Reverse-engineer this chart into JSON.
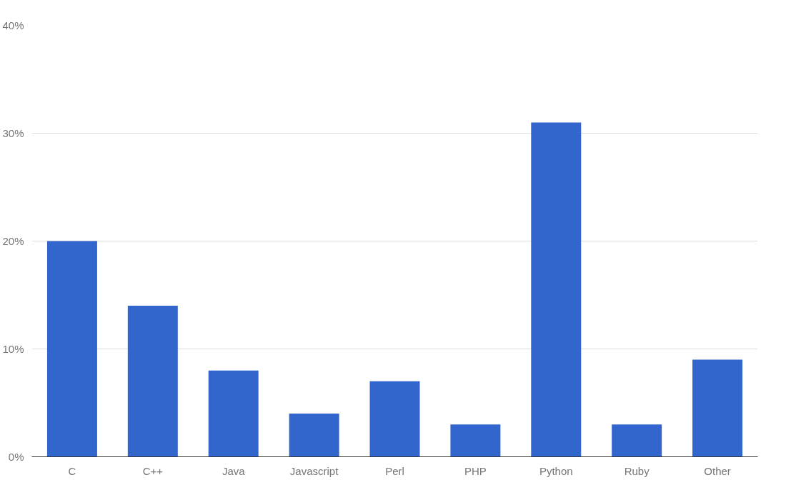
{
  "chart_data": {
    "type": "bar",
    "categories": [
      "C",
      "C++",
      "Java",
      "Javascript",
      "Perl",
      "PHP",
      "Python",
      "Ruby",
      "Other"
    ],
    "values": [
      20,
      14,
      8,
      4,
      7,
      3,
      31,
      3,
      9
    ],
    "color": "#3366cc",
    "ylim": [
      0,
      40
    ],
    "yticks": [
      {
        "value": 0,
        "label": "0%"
      },
      {
        "value": 10,
        "label": "10%"
      },
      {
        "value": 20,
        "label": "20%"
      },
      {
        "value": 30,
        "label": "30%"
      },
      {
        "value": 40,
        "label": "40%"
      }
    ],
    "grid": "y"
  }
}
